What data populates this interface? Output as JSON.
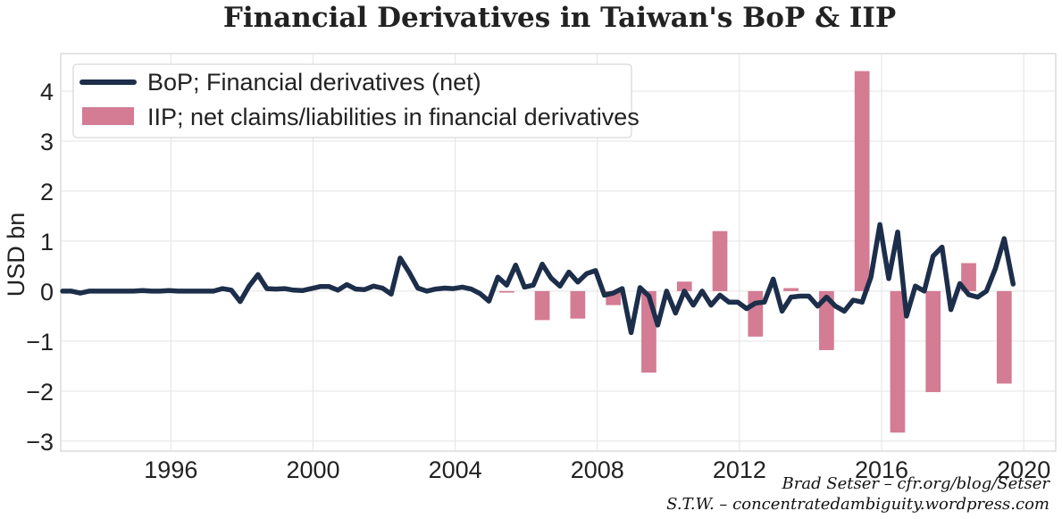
{
  "chart_data": {
    "type": "bar+line",
    "title": "Financial Derivatives in Taiwan's BoP & IIP",
    "ylabel": "USD bn",
    "xlabel": "",
    "xlim": [
      1992.9,
      2020.9
    ],
    "ylim": [
      -3.2,
      4.75
    ],
    "x_ticks": [
      1996,
      2000,
      2004,
      2008,
      2012,
      2016,
      2020
    ],
    "y_ticks": [
      4,
      3,
      2,
      1,
      0,
      -1,
      -2,
      -3
    ],
    "y_tick_labels": [
      "4",
      "3",
      "2",
      "1",
      "0",
      "−1",
      "−2",
      "−3"
    ],
    "grid": true,
    "legend_position": "top-left",
    "series": [
      {
        "name": "BoP; Financial derivatives (net)",
        "kind": "line",
        "color": "#1c2e4a",
        "x": [
          1992.95,
          1993.2,
          1993.45,
          1993.7,
          1993.95,
          1994.2,
          1994.45,
          1994.7,
          1994.95,
          1995.2,
          1995.45,
          1995.7,
          1995.95,
          1996.2,
          1996.45,
          1996.7,
          1996.95,
          1997.2,
          1997.45,
          1997.7,
          1997.95,
          1998.2,
          1998.45,
          1998.7,
          1998.95,
          1999.2,
          1999.45,
          1999.7,
          1999.95,
          2000.2,
          2000.45,
          2000.7,
          2000.95,
          2001.2,
          2001.45,
          2001.7,
          2001.95,
          2002.2,
          2002.45,
          2002.7,
          2002.95,
          2003.2,
          2003.45,
          2003.7,
          2003.95,
          2004.2,
          2004.45,
          2004.7,
          2004.95,
          2005.2,
          2005.45,
          2005.7,
          2005.95,
          2006.2,
          2006.45,
          2006.7,
          2006.95,
          2007.2,
          2007.45,
          2007.7,
          2007.95,
          2008.2,
          2008.45,
          2008.7,
          2008.95,
          2009.2,
          2009.45,
          2009.7,
          2009.95,
          2010.2,
          2010.45,
          2010.7,
          2010.95,
          2011.2,
          2011.45,
          2011.7,
          2011.95,
          2012.2,
          2012.45,
          2012.7,
          2012.95,
          2013.2,
          2013.45,
          2013.7,
          2013.95,
          2014.2,
          2014.45,
          2014.7,
          2014.95,
          2015.2,
          2015.45,
          2015.7,
          2015.95,
          2016.2,
          2016.45,
          2016.7,
          2016.95,
          2017.2,
          2017.45,
          2017.7,
          2017.95,
          2018.2,
          2018.45,
          2018.7,
          2018.95,
          2019.2,
          2019.45,
          2019.7
        ],
        "values": [
          0.0,
          0.0,
          -0.04,
          0.0,
          0.0,
          0.0,
          0.0,
          0.0,
          0.0,
          0.01,
          0.0,
          0.0,
          0.01,
          0.0,
          0.0,
          0.0,
          0.0,
          0.0,
          0.05,
          0.02,
          -0.21,
          0.1,
          0.33,
          0.05,
          0.04,
          0.05,
          0.02,
          0.01,
          0.05,
          0.09,
          0.09,
          0.02,
          0.13,
          0.04,
          0.03,
          0.1,
          0.06,
          -0.06,
          0.66,
          0.38,
          0.06,
          0.0,
          0.04,
          0.06,
          0.05,
          0.08,
          0.04,
          -0.05,
          -0.2,
          0.28,
          0.12,
          0.52,
          0.08,
          0.12,
          0.54,
          0.26,
          0.1,
          0.38,
          0.18,
          0.35,
          0.41,
          -0.08,
          -0.04,
          0.05,
          -0.83,
          0.07,
          -0.1,
          -0.68,
          0.0,
          -0.44,
          0.0,
          -0.28,
          0.0,
          -0.28,
          -0.08,
          -0.22,
          -0.22,
          -0.35,
          -0.24,
          -0.22,
          0.24,
          -0.4,
          -0.12,
          -0.1,
          -0.1,
          -0.3,
          -0.12,
          -0.3,
          -0.4,
          -0.18,
          -0.22,
          0.28,
          1.33,
          0.25,
          1.18,
          -0.5,
          0.1,
          0.0,
          0.7,
          0.88,
          -0.37,
          0.15,
          -0.07,
          -0.12,
          0.0,
          0.45,
          1.05,
          0.14
        ]
      },
      {
        "name": "IIP; net claims/liabilities in financial derivatives",
        "kind": "bar",
        "color": "#d37c93",
        "bar_width": 0.42,
        "x": [
          2005.45,
          2006.45,
          2007.45,
          2008.45,
          2009.45,
          2010.45,
          2011.45,
          2012.45,
          2013.45,
          2014.45,
          2015.45,
          2016.45,
          2017.45,
          2018.45,
          2019.45
        ],
        "values": [
          -0.03,
          -0.58,
          -0.55,
          -0.28,
          -1.63,
          0.19,
          1.2,
          -0.91,
          0.06,
          -1.18,
          4.4,
          -2.83,
          -2.02,
          0.56,
          -1.85
        ]
      }
    ]
  },
  "credits": {
    "line1": "Brad Setser – cfr.org/blog/Setser",
    "line2": "S.T.W. – concentratedambiguity.wordpress.com"
  },
  "colors": {
    "line": "#1c2e4a",
    "bar": "#d37c93",
    "grid": "#e3e3e3",
    "frame": "#c8c8c8"
  }
}
